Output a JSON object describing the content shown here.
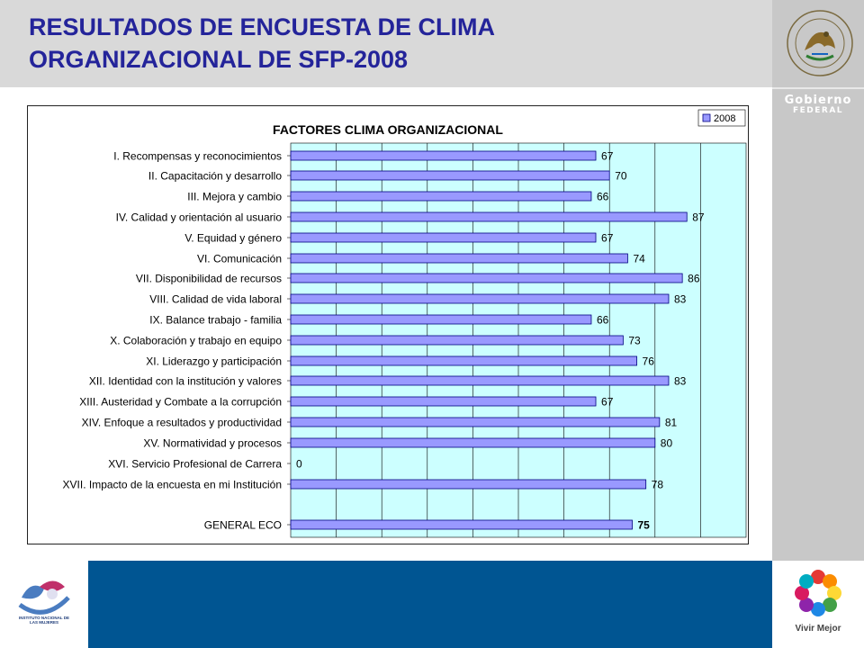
{
  "header": {
    "title": "RESULTADOS DE ENCUESTA DE CLIMA\nORGANIZACIONAL  DE SFP-2008"
  },
  "branding": {
    "gobierno_line1": "Gobierno",
    "gobierno_line2": "FEDERAL",
    "vivir_mejor": "Vivir Mejor",
    "inm_text": "INSTITUTO NACIONAL DE LAS MUJERES"
  },
  "colors": {
    "title": "#24249a",
    "header_bg": "#d9d9d9",
    "panel_bg": "#c8c8c8",
    "footer_band": "#005592",
    "plot_bg": "#ccffff",
    "bar_fill": "#9999ff",
    "bar_stroke": "#000080"
  },
  "chart_data": {
    "type": "bar",
    "orientation": "horizontal",
    "title": "FACTORES  CLIMA  ORGANIZACIONAL",
    "xlim": [
      0,
      100
    ],
    "grid": true,
    "legend_position": "top-right",
    "series": [
      {
        "name": "2008",
        "values": [
          67,
          70,
          66,
          87,
          67,
          74,
          86,
          83,
          66,
          73,
          76,
          83,
          67,
          81,
          80,
          0,
          78,
          75
        ]
      }
    ],
    "categories": [
      "I. Recompensas y reconocimientos",
      "II. Capacitación y desarrollo",
      "III. Mejora y cambio",
      "IV. Calidad y orientación al usuario",
      "V. Equidad y género",
      "VI. Comunicación",
      "VII. Disponibilidad de recursos",
      "VIII. Calidad de vida laboral",
      "IX. Balance trabajo - familia",
      "X. Colaboración y trabajo en equipo",
      "XI. Liderazgo y participación",
      "XII. Identidad con la institución y valores",
      "XIII. Austeridad y Combate a la corrupción",
      "XIV. Enfoque a resultados y productividad",
      "XV. Normatividad y procesos",
      "XVI. Servicio Profesional de Carrera",
      "XVII. Impacto de la encuesta en mi Institución",
      "GENERAL ECO"
    ],
    "data_labels": [
      "67",
      "70",
      "66",
      "87",
      "67",
      "74",
      "86",
      "83",
      "66",
      "73",
      "76",
      "83",
      "67",
      "81",
      "80",
      "0",
      "78",
      "75"
    ],
    "bold_label_index": 17
  }
}
